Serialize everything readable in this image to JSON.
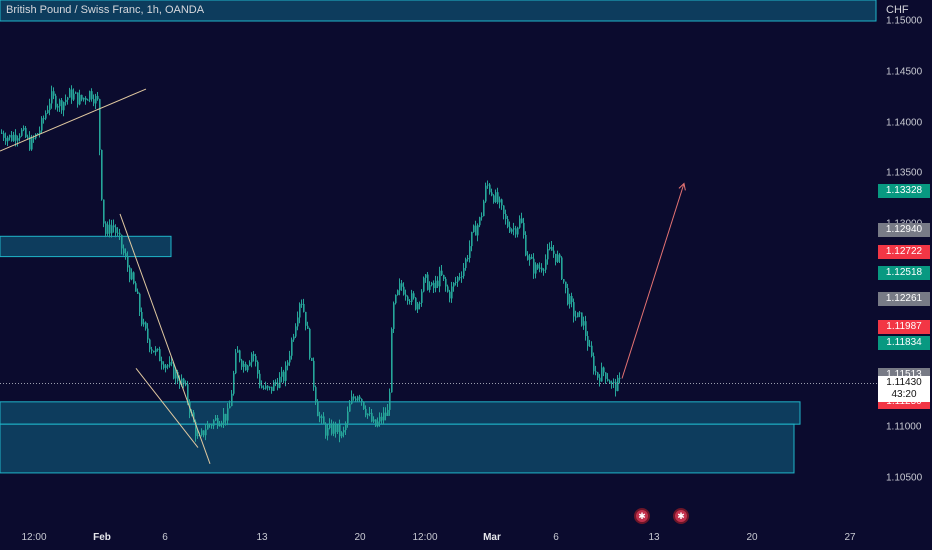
{
  "header": {
    "title": "British Pound / Swiss Franc, 1h, OANDA",
    "currency": "CHF"
  },
  "y_axis": {
    "ticks": [
      "1.15000",
      "1.14500",
      "1.14000",
      "1.13500",
      "1.13000",
      "1.12500",
      "1.12000",
      "1.11500",
      "1.11000",
      "1.10500"
    ]
  },
  "x_axis": {
    "ticks": [
      "12:00",
      "Feb",
      "6",
      "13",
      "20",
      "12:00",
      "Mar",
      "6",
      "13",
      "20",
      "27"
    ],
    "bold": [
      "Feb",
      "Mar"
    ]
  },
  "price_badges": [
    {
      "label": "1.13328",
      "color": "#089981"
    },
    {
      "label": "1.12940",
      "color": "#787b86"
    },
    {
      "label": "1.12722",
      "color": "#f23645"
    },
    {
      "label": "1.12518",
      "color": "#089981"
    },
    {
      "label": "1.12261",
      "color": "#787b86"
    },
    {
      "label": "1.11987",
      "color": "#f23645"
    },
    {
      "label": "1.11834",
      "color": "#089981"
    },
    {
      "label": "1.11513",
      "color": "#787b86"
    },
    {
      "label": "1.11250",
      "color": "#f23645"
    }
  ],
  "current_price": {
    "price": "1.11430",
    "countdown": "43:20"
  },
  "events": [
    "event-flag-1",
    "event-flag-2"
  ],
  "colors": {
    "background": "#0b0b2e",
    "candle": "#26a69a",
    "zone_fill": "#0e4a6a",
    "zone_border": "#1fb5c9",
    "trendline": "#e0c8a0",
    "projection": "#e57373"
  },
  "chart_data": {
    "type": "candlestick",
    "title": "British Pound / Swiss Franc, 1h, OANDA",
    "ylabel": "CHF",
    "ylim": [
      1.1035,
      1.1525
    ],
    "trend_path": [
      [
        0,
        1.139
      ],
      [
        10,
        1.1385
      ],
      [
        20,
        1.1392
      ],
      [
        30,
        1.1378
      ],
      [
        40,
        1.1395
      ],
      [
        50,
        1.1425
      ],
      [
        60,
        1.1418
      ],
      [
        70,
        1.1428
      ],
      [
        80,
        1.1422
      ],
      [
        90,
        1.143
      ],
      [
        97,
        1.142
      ],
      [
        101,
        1.133
      ],
      [
        104,
        1.129
      ],
      [
        112,
        1.13
      ],
      [
        120,
        1.128
      ],
      [
        128,
        1.1255
      ],
      [
        136,
        1.123
      ],
      [
        142,
        1.12
      ],
      [
        150,
        1.118
      ],
      [
        158,
        1.117
      ],
      [
        168,
        1.116
      ],
      [
        176,
        1.115
      ],
      [
        184,
        1.114
      ],
      [
        190,
        1.1115
      ],
      [
        198,
        1.1085
      ],
      [
        205,
        1.11
      ],
      [
        212,
        1.1105
      ],
      [
        220,
        1.111
      ],
      [
        228,
        1.1112
      ],
      [
        236,
        1.1175
      ],
      [
        244,
        1.116
      ],
      [
        252,
        1.1175
      ],
      [
        260,
        1.114
      ],
      [
        268,
        1.1135
      ],
      [
        276,
        1.1145
      ],
      [
        284,
        1.115
      ],
      [
        292,
        1.119
      ],
      [
        300,
        1.123
      ],
      [
        306,
        1.12
      ],
      [
        312,
        1.115
      ],
      [
        318,
        1.111
      ],
      [
        326,
        1.1095
      ],
      [
        334,
        1.11
      ],
      [
        342,
        1.109
      ],
      [
        350,
        1.1125
      ],
      [
        358,
        1.1135
      ],
      [
        366,
        1.1115
      ],
      [
        374,
        1.11
      ],
      [
        382,
        1.111
      ],
      [
        388,
        1.1115
      ],
      [
        392,
        1.1215
      ],
      [
        400,
        1.124
      ],
      [
        408,
        1.123
      ],
      [
        416,
        1.122
      ],
      [
        424,
        1.1245
      ],
      [
        432,
        1.1235
      ],
      [
        440,
        1.125
      ],
      [
        448,
        1.123
      ],
      [
        456,
        1.1245
      ],
      [
        464,
        1.126
      ],
      [
        472,
        1.129
      ],
      [
        480,
        1.1305
      ],
      [
        486,
        1.134
      ],
      [
        492,
        1.133
      ],
      [
        498,
        1.132
      ],
      [
        506,
        1.13
      ],
      [
        514,
        1.1295
      ],
      [
        520,
        1.1305
      ],
      [
        526,
        1.127
      ],
      [
        534,
        1.1255
      ],
      [
        542,
        1.126
      ],
      [
        550,
        1.1275
      ],
      [
        558,
        1.1265
      ],
      [
        566,
        1.123
      ],
      [
        574,
        1.121
      ],
      [
        582,
        1.1205
      ],
      [
        590,
        1.117
      ],
      [
        596,
        1.115
      ],
      [
        604,
        1.1155
      ],
      [
        612,
        1.114
      ],
      [
        620,
        1.1143
      ]
    ],
    "zones": [
      {
        "x0": 0,
        "x1": 876,
        "top": 1.1525,
        "bottom": 1.15
      },
      {
        "x0": 0,
        "x1": 171,
        "top": 1.1288,
        "bottom": 1.1268
      },
      {
        "x0": 0,
        "x1": 800,
        "top": 1.1125,
        "bottom": 1.1103
      },
      {
        "x0": 0,
        "x1": 794,
        "top": 1.1103,
        "bottom": 1.1055
      }
    ],
    "lines": [
      {
        "kind": "trendline",
        "from": [
          0,
          1.1372
        ],
        "to": [
          146,
          1.1433
        ]
      },
      {
        "kind": "trendline",
        "from": [
          120,
          1.131
        ],
        "to": [
          210,
          1.1064
        ]
      },
      {
        "kind": "trendline",
        "from": [
          136,
          1.1158
        ],
        "to": [
          198,
          1.108
        ]
      },
      {
        "kind": "projection",
        "from": [
          622,
          1.1148
        ],
        "to": [
          684,
          1.134
        ]
      }
    ]
  }
}
